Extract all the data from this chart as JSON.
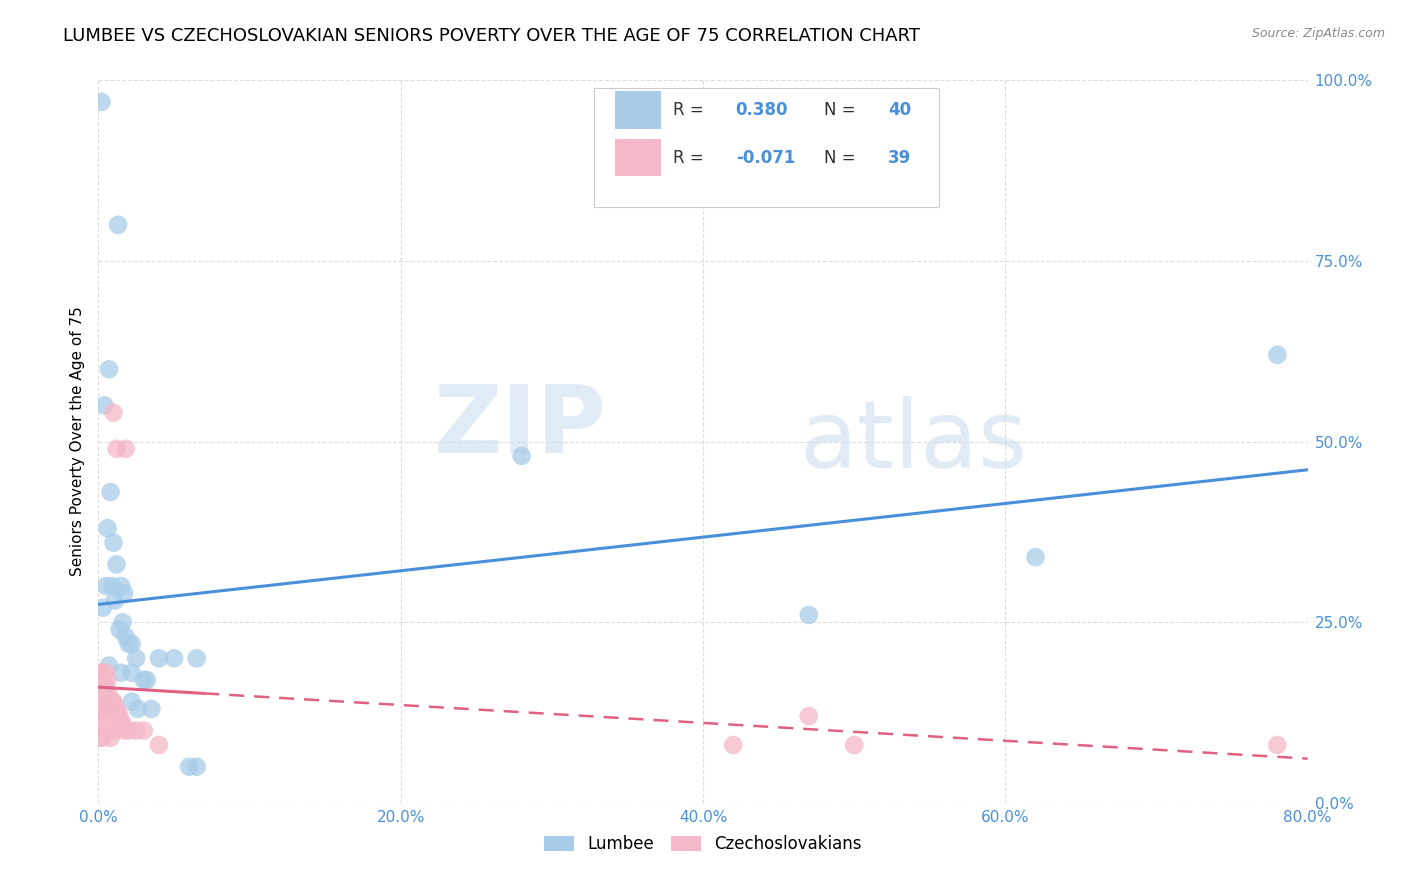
{
  "title": "LUMBEE VS CZECHOSLOVAKIAN SENIORS POVERTY OVER THE AGE OF 75 CORRELATION CHART",
  "source": "Source: ZipAtlas.com",
  "xlim": [
    0.0,
    0.8
  ],
  "ylim": [
    0.0,
    1.0
  ],
  "lumbee_R": 0.38,
  "lumbee_N": 40,
  "czech_R": -0.071,
  "czech_N": 39,
  "lumbee_color": "#a8cce8",
  "czech_color": "#f4b8c8",
  "lumbee_line_color": "#4a90d9",
  "czech_line_color": "#e06080",
  "lumbee_scatter": [
    [
      0.002,
      0.97
    ],
    [
      0.013,
      0.8
    ],
    [
      0.007,
      0.6
    ],
    [
      0.004,
      0.55
    ],
    [
      0.008,
      0.43
    ],
    [
      0.006,
      0.38
    ],
    [
      0.01,
      0.36
    ],
    [
      0.012,
      0.33
    ],
    [
      0.005,
      0.3
    ],
    [
      0.009,
      0.3
    ],
    [
      0.015,
      0.3
    ],
    [
      0.017,
      0.29
    ],
    [
      0.011,
      0.28
    ],
    [
      0.003,
      0.27
    ],
    [
      0.016,
      0.25
    ],
    [
      0.014,
      0.24
    ],
    [
      0.018,
      0.23
    ],
    [
      0.02,
      0.22
    ],
    [
      0.022,
      0.22
    ],
    [
      0.025,
      0.2
    ],
    [
      0.007,
      0.19
    ],
    [
      0.015,
      0.18
    ],
    [
      0.022,
      0.18
    ],
    [
      0.03,
      0.17
    ],
    [
      0.032,
      0.17
    ],
    [
      0.005,
      0.16
    ],
    [
      0.004,
      0.15
    ],
    [
      0.022,
      0.14
    ],
    [
      0.008,
      0.13
    ],
    [
      0.026,
      0.13
    ],
    [
      0.035,
      0.13
    ],
    [
      0.04,
      0.2
    ],
    [
      0.05,
      0.2
    ],
    [
      0.065,
      0.2
    ],
    [
      0.06,
      0.05
    ],
    [
      0.065,
      0.05
    ],
    [
      0.28,
      0.48
    ],
    [
      0.47,
      0.26
    ],
    [
      0.62,
      0.34
    ],
    [
      0.78,
      0.62
    ]
  ],
  "czech_scatter": [
    [
      0.001,
      0.18
    ],
    [
      0.002,
      0.18
    ],
    [
      0.003,
      0.17
    ],
    [
      0.004,
      0.16
    ],
    [
      0.005,
      0.18
    ],
    [
      0.006,
      0.17
    ],
    [
      0.003,
      0.15
    ],
    [
      0.007,
      0.15
    ],
    [
      0.008,
      0.14
    ],
    [
      0.009,
      0.14
    ],
    [
      0.01,
      0.14
    ],
    [
      0.002,
      0.13
    ],
    [
      0.005,
      0.13
    ],
    [
      0.006,
      0.13
    ],
    [
      0.011,
      0.13
    ],
    [
      0.012,
      0.13
    ],
    [
      0.004,
      0.12
    ],
    [
      0.013,
      0.12
    ],
    [
      0.014,
      0.12
    ],
    [
      0.015,
      0.11
    ],
    [
      0.001,
      0.11
    ],
    [
      0.016,
      0.11
    ],
    [
      0.005,
      0.1
    ],
    [
      0.01,
      0.1
    ],
    [
      0.017,
      0.1
    ],
    [
      0.02,
      0.1
    ],
    [
      0.025,
      0.1
    ],
    [
      0.03,
      0.1
    ],
    [
      0.001,
      0.09
    ],
    [
      0.003,
      0.09
    ],
    [
      0.008,
      0.09
    ],
    [
      0.04,
      0.08
    ],
    [
      0.01,
      0.54
    ],
    [
      0.012,
      0.49
    ],
    [
      0.018,
      0.49
    ],
    [
      0.42,
      0.08
    ],
    [
      0.47,
      0.12
    ],
    [
      0.5,
      0.08
    ],
    [
      0.78,
      0.08
    ]
  ],
  "watermark_zip": "ZIP",
  "watermark_atlas": "atlas",
  "background_color": "#ffffff",
  "grid_color": "#dddddd",
  "title_fontsize": 13,
  "axis_label_fontsize": 11,
  "tick_fontsize": 11,
  "legend_label_lumbee": "Lumbee",
  "legend_label_czech": "Czechoslovakians"
}
